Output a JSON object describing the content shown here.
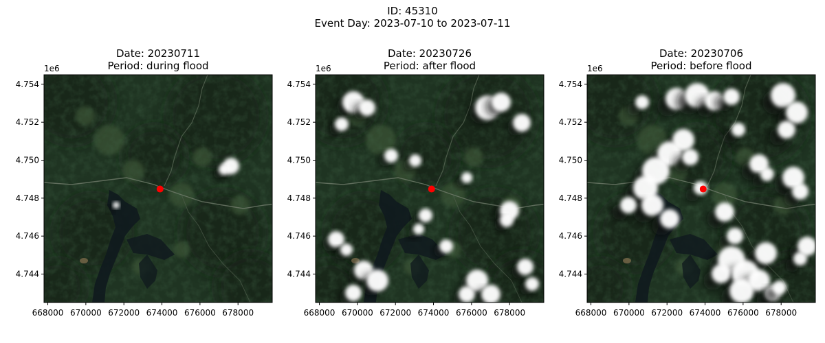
{
  "figure": {
    "title_line1": "ID: 45310",
    "title_line2": "Event Day: 2023-07-10 to 2023-07-11"
  },
  "panels": [
    {
      "title_line1": "Date: 20230711",
      "title_line2": "Period: during flood",
      "clouds": "sparse"
    },
    {
      "title_line1": "Date: 20230726",
      "title_line2": "Period: after flood",
      "clouds": "moderate"
    },
    {
      "title_line1": "Date: 20230706",
      "title_line2": "Period: before flood",
      "clouds": "heavy"
    }
  ],
  "axes": {
    "x_ticks": [
      "668000",
      "670000",
      "672000",
      "674000",
      "676000",
      "678000"
    ],
    "y_ticks": [
      "4.754",
      "4.752",
      "4.750",
      "4.748",
      "4.746",
      "4.744"
    ],
    "y_offset_label": "1e6",
    "x_range": [
      667800,
      679800
    ],
    "y_range": [
      4742500,
      4754500
    ],
    "x_tick_values": [
      668000,
      670000,
      672000,
      674000,
      676000,
      678000
    ],
    "y_tick_values": [
      4754000,
      4752000,
      4750000,
      4748000,
      4746000,
      4744000
    ]
  },
  "event_point": {
    "x": 673900,
    "y": 4748480,
    "color": "#ff0000"
  },
  "colors": {
    "forest": "#1f3422",
    "forest_dark": "#142418",
    "field": "#3a5236",
    "water": "#101a1e",
    "cloud": "#ffffff",
    "shadow": "#0a110c"
  }
}
